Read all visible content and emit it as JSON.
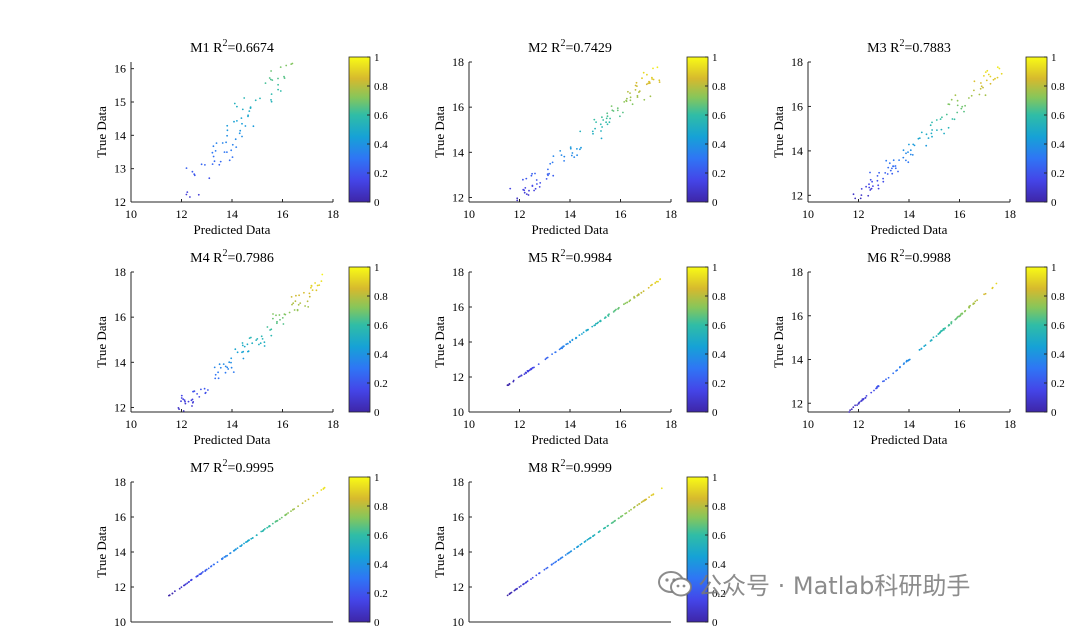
{
  "chart_data": [
    {
      "type": "scatter",
      "title_model": "M1",
      "title_r2": "=0.6674",
      "xlabel": "Predicted Data",
      "ylabel": "True Data",
      "xlim": [
        10,
        18
      ],
      "ylim": [
        12,
        16.2
      ],
      "xticks": [
        "10",
        "12",
        "14",
        "16",
        "18"
      ],
      "yticks": [
        "12",
        "13",
        "14",
        "15",
        "16"
      ],
      "noise": 0.6,
      "colorbar": {
        "range": [
          0,
          1
        ],
        "ticks": [
          "0",
          "0.2",
          "0.4",
          "0.6",
          "0.8",
          "1"
        ]
      }
    },
    {
      "type": "scatter",
      "title_model": "M2",
      "title_r2": "=0.7429",
      "xlabel": "Predicted Data",
      "ylabel": "True Data",
      "xlim": [
        10,
        18
      ],
      "ylim": [
        11.8,
        18
      ],
      "xticks": [
        "10",
        "12",
        "14",
        "16",
        "18"
      ],
      "yticks": [
        "12",
        "14",
        "16",
        "18"
      ],
      "noise": 0.55,
      "colorbar": {
        "range": [
          0,
          1
        ],
        "ticks": [
          "0",
          "0.2",
          "0.4",
          "0.6",
          "0.8",
          "1"
        ]
      }
    },
    {
      "type": "scatter",
      "title_model": "M3",
      "title_r2": "=0.7883",
      "xlabel": "Predicted Data",
      "ylabel": "True Data",
      "xlim": [
        10,
        18
      ],
      "ylim": [
        11.7,
        18
      ],
      "xticks": [
        "10",
        "12",
        "14",
        "16",
        "18"
      ],
      "yticks": [
        "12",
        "14",
        "16",
        "18"
      ],
      "noise": 0.5,
      "colorbar": {
        "range": [
          0,
          1
        ],
        "ticks": [
          "0",
          "0.2",
          "0.4",
          "0.6",
          "0.8",
          "1"
        ]
      }
    },
    {
      "type": "scatter",
      "title_model": "M4",
      "title_r2": "=0.7986",
      "xlabel": "Predicted Data",
      "ylabel": "True Data",
      "xlim": [
        10,
        18
      ],
      "ylim": [
        11.8,
        18
      ],
      "xticks": [
        "10",
        "12",
        "14",
        "16",
        "18"
      ],
      "yticks": [
        "12",
        "14",
        "16",
        "18"
      ],
      "noise": 0.48,
      "colorbar": {
        "range": [
          0,
          1
        ],
        "ticks": [
          "0",
          "0.2",
          "0.4",
          "0.6",
          "0.8",
          "1"
        ]
      }
    },
    {
      "type": "scatter",
      "title_model": "M5",
      "title_r2": "=0.9984",
      "xlabel": "Predicted Data",
      "ylabel": "True Data",
      "xlim": [
        10,
        18
      ],
      "ylim": [
        10,
        18
      ],
      "xticks": [
        "10",
        "12",
        "14",
        "16",
        "18"
      ],
      "yticks": [
        "10",
        "12",
        "14",
        "16",
        "18"
      ],
      "noise": 0.04,
      "colorbar": {
        "range": [
          0,
          1
        ],
        "ticks": [
          "0",
          "0.2",
          "0.4",
          "0.6",
          "0.8",
          "1"
        ]
      }
    },
    {
      "type": "scatter",
      "title_model": "M6",
      "title_r2": "=0.9988",
      "xlabel": "Predicted Data",
      "ylabel": "True Data",
      "xlim": [
        10,
        18
      ],
      "ylim": [
        11.6,
        18
      ],
      "xticks": [
        "10",
        "12",
        "14",
        "16",
        "18"
      ],
      "yticks": [
        "12",
        "14",
        "16",
        "18"
      ],
      "noise": 0.035,
      "colorbar": {
        "range": [
          0,
          1
        ],
        "ticks": [
          "0",
          "0.2",
          "0.4",
          "0.6",
          "0.8",
          "1"
        ]
      }
    },
    {
      "type": "scatter",
      "title_model": "M7",
      "title_r2": "=0.9995",
      "xlabel": "",
      "ylabel": "True Data",
      "xlim": [
        10,
        18
      ],
      "ylim": [
        10,
        18
      ],
      "xticks": [],
      "yticks": [
        "10",
        "12",
        "14",
        "16",
        "18"
      ],
      "noise": 0.02,
      "colorbar": {
        "range": [
          0,
          1
        ],
        "ticks": [
          "0",
          "0.2",
          "0.4",
          "0.6",
          "0.8",
          "1"
        ]
      }
    },
    {
      "type": "scatter",
      "title_model": "M8",
      "title_r2": "=0.9999",
      "xlabel": "",
      "ylabel": "True Data",
      "xlim": [
        10,
        18
      ],
      "ylim": [
        10,
        18
      ],
      "xticks": [],
      "yticks": [
        "10",
        "12",
        "14",
        "16",
        "18"
      ],
      "noise": 0.01,
      "colorbar": {
        "range": [
          0,
          1
        ],
        "ticks": [
          "0",
          "0.2",
          "0.4",
          "0.6",
          "0.8",
          "1"
        ]
      }
    }
  ],
  "series_points": {
    "x_range": [
      11.5,
      18
    ],
    "count": 110,
    "colormap": "parula"
  },
  "watermark": {
    "text": "公众号 · Matlab科研助手",
    "icon": "wechat-icon"
  }
}
